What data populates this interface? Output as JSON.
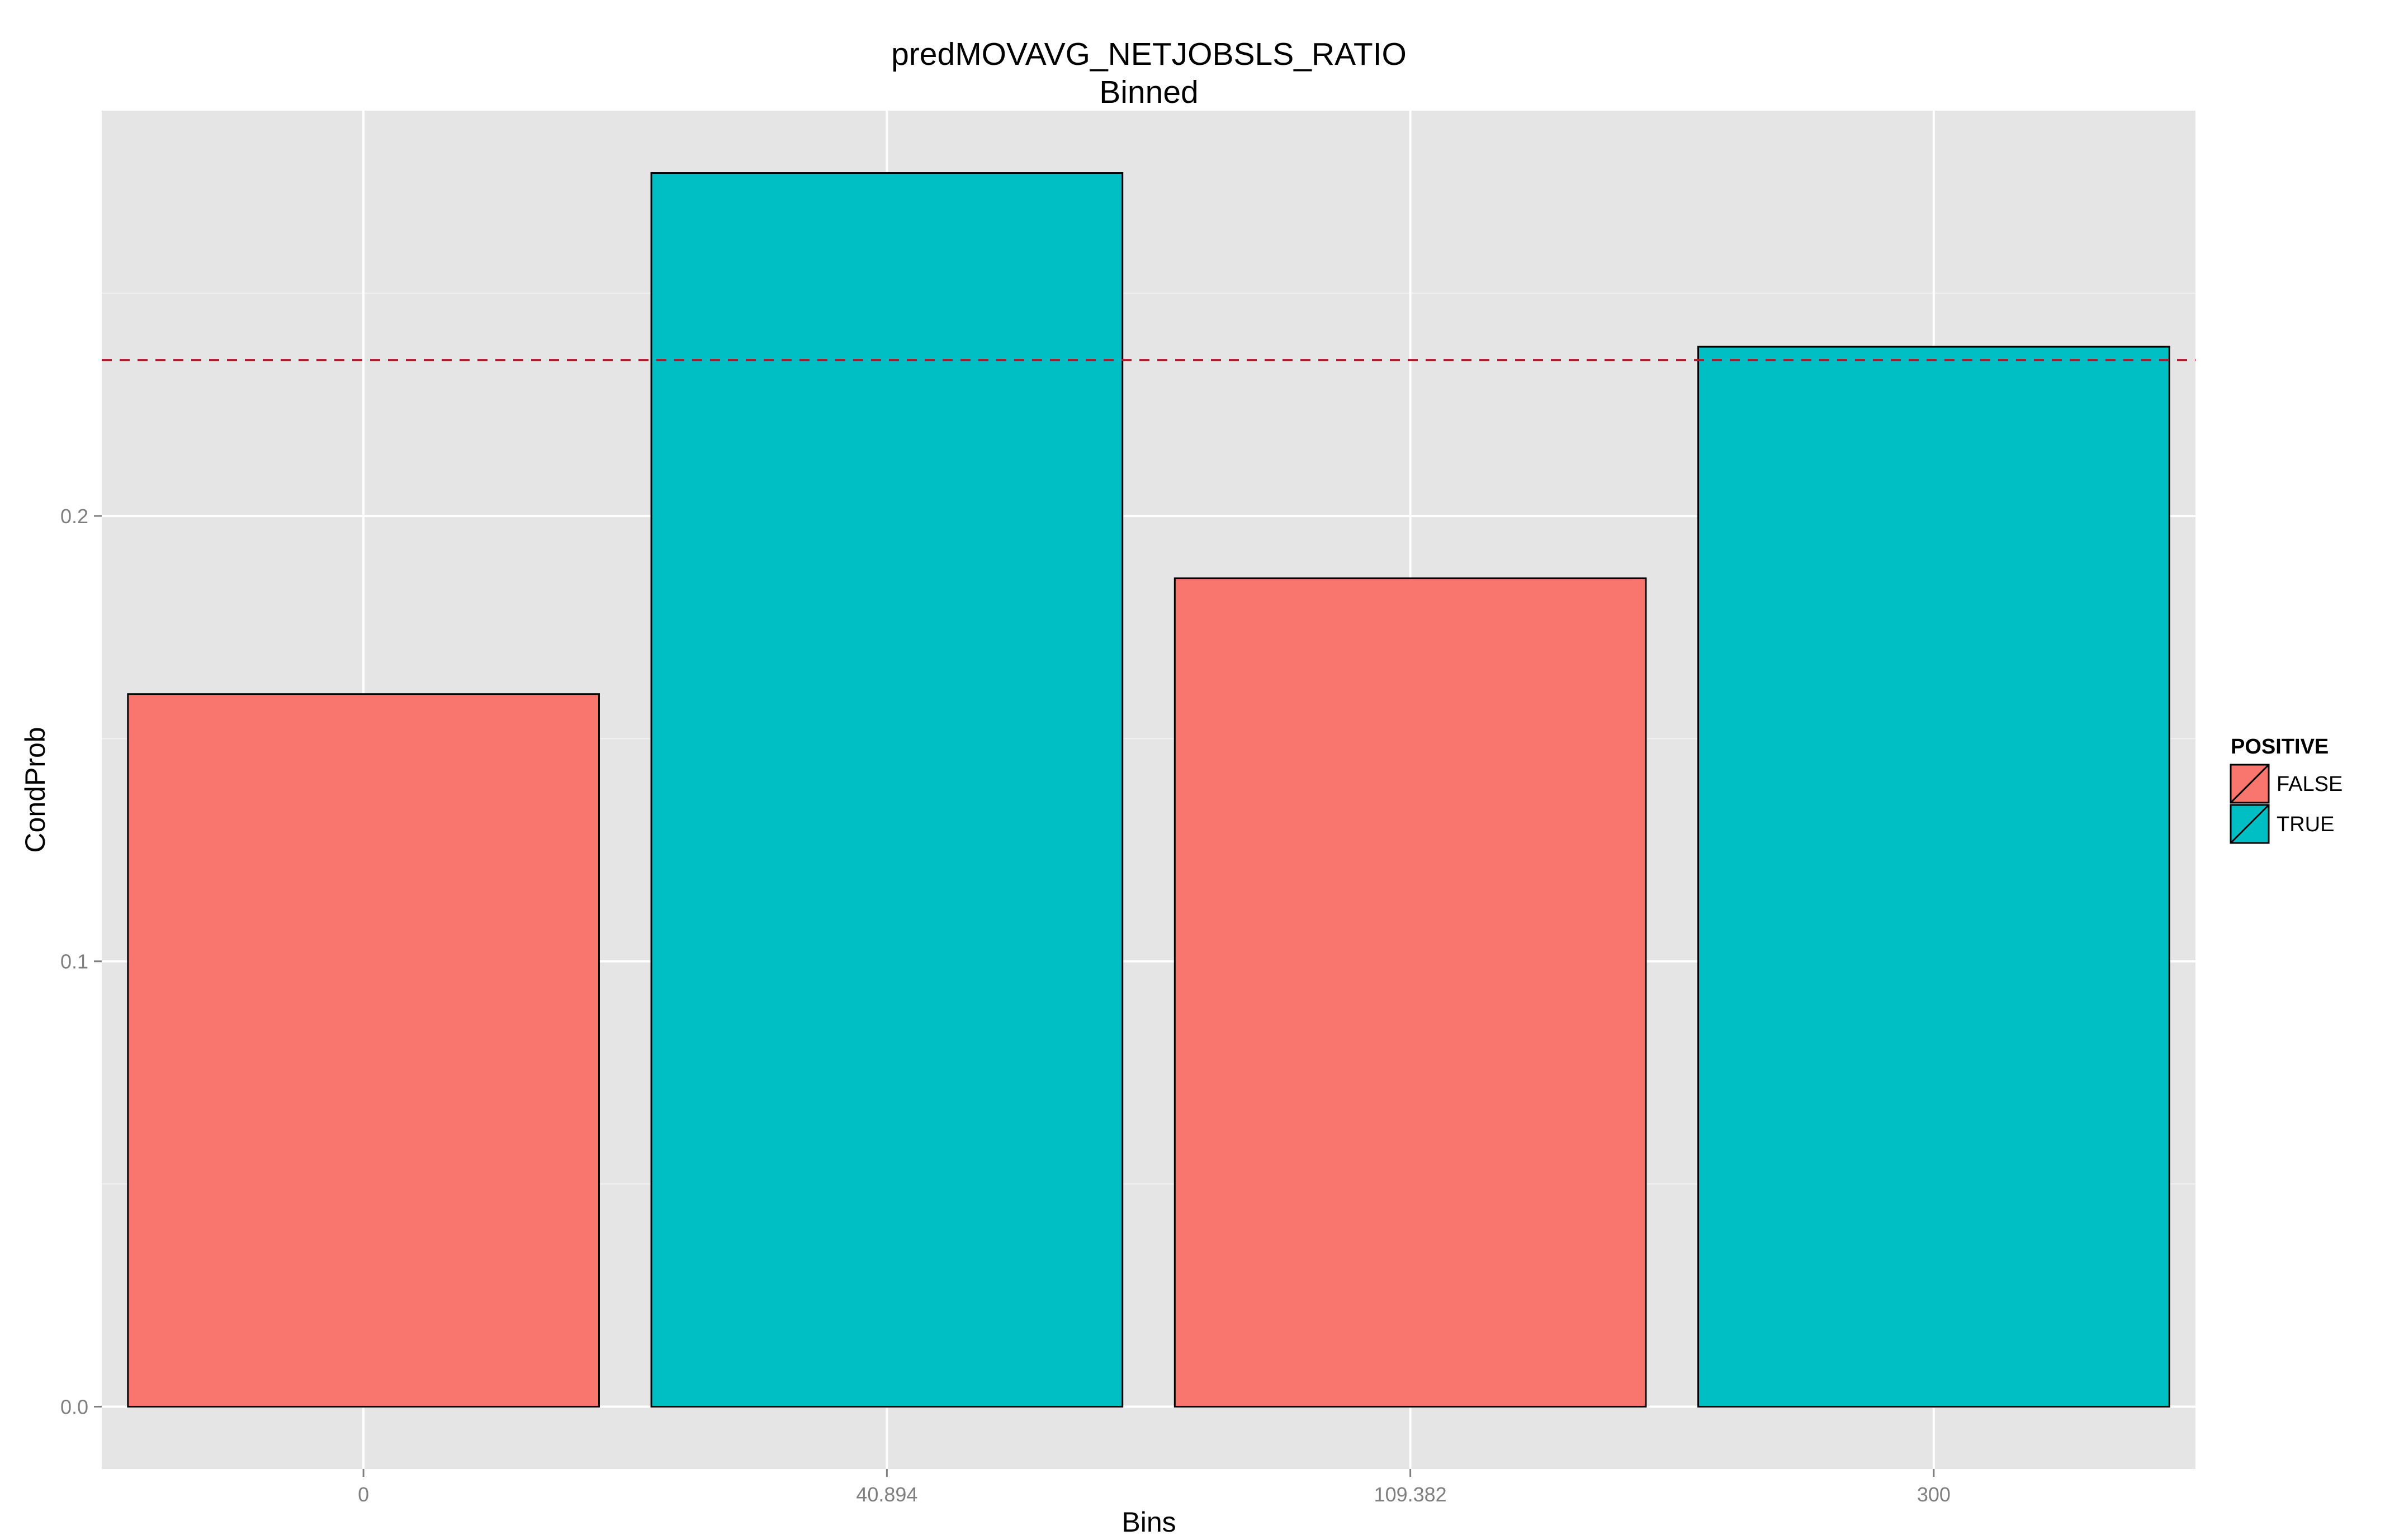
{
  "chart_data": {
    "type": "bar",
    "title": "predMOVAVG_NETJOBSLS_RATIO",
    "subtitle": "Binned",
    "xlabel": "Bins",
    "ylabel": "CondProb",
    "categories": [
      "0",
      "40.894",
      "109.382",
      "300"
    ],
    "values": [
      0.16,
      0.277,
      0.186,
      0.238
    ],
    "positive": [
      "FALSE",
      "TRUE",
      "FALSE",
      "TRUE"
    ],
    "ylim": [
      -0.014,
      0.291
    ],
    "yticks": [
      {
        "value": 0.0,
        "label": "0.0"
      },
      {
        "value": 0.1,
        "label": "0.1"
      },
      {
        "value": 0.2,
        "label": "0.2"
      }
    ],
    "yminor": [
      0.05,
      0.15,
      0.25
    ],
    "reference_line": {
      "value": 0.235,
      "color": "#b2182b",
      "style": "dashed"
    },
    "grid": true,
    "legend": {
      "title": "POSITIVE",
      "position": "right",
      "entries": [
        {
          "label": "FALSE",
          "color": "#f8766d"
        },
        {
          "label": "TRUE",
          "color": "#00bfc4"
        }
      ]
    },
    "colors": {
      "FALSE": "#f8766d",
      "TRUE": "#00bfc4",
      "panel": "#e5e5e5",
      "grid": "#ffffff"
    }
  }
}
